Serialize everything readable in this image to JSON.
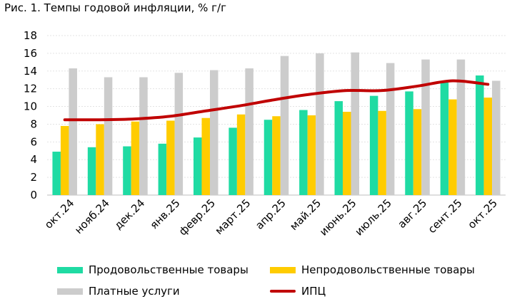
{
  "title": "Рис. 1. Темпы годовой инфляции, % г/г",
  "colors": {
    "food": "#1fdba3",
    "nonfood": "#ffcc00",
    "services": "#cccccc",
    "cpi": "#c00000"
  },
  "chart_data": {
    "type": "bar",
    "title": "Рис. 1. Темпы годовой инфляции, % г/г",
    "xlabel": "",
    "ylabel": "",
    "ylim": [
      0,
      18
    ],
    "yticks": [
      0,
      2,
      4,
      6,
      8,
      10,
      12,
      14,
      16,
      18
    ],
    "grid": true,
    "legend_position": "bottom",
    "categories": [
      "окт.24",
      "нояб.24",
      "дек.24",
      "янв.25",
      "февр.25",
      "март.25",
      "апр.25",
      "май.25",
      "июнь.25",
      "июль.25",
      "авг.25",
      "сент.25",
      "окт.25"
    ],
    "series": [
      {
        "name": "Продовольственные товары",
        "type": "bar",
        "color": "#1fdba3",
        "values": [
          4.9,
          5.4,
          5.5,
          5.8,
          6.5,
          7.6,
          8.5,
          9.6,
          10.6,
          11.2,
          11.7,
          12.7,
          13.5
        ]
      },
      {
        "name": "Непродовольственные товары",
        "type": "bar",
        "color": "#ffcc00",
        "values": [
          7.8,
          8.0,
          8.3,
          8.4,
          8.7,
          9.1,
          8.9,
          9.0,
          9.4,
          9.5,
          9.7,
          10.8,
          11.0
        ]
      },
      {
        "name": "Платные услуги",
        "type": "bar",
        "color": "#cccccc",
        "values": [
          14.3,
          13.3,
          13.3,
          13.8,
          14.1,
          14.3,
          15.7,
          16.0,
          16.1,
          14.9,
          15.3,
          15.3,
          12.9
        ]
      },
      {
        "name": "ИПЦ",
        "type": "line",
        "color": "#c00000",
        "values": [
          8.5,
          8.5,
          8.6,
          8.9,
          9.5,
          10.1,
          10.8,
          11.4,
          11.8,
          11.8,
          12.3,
          12.9,
          12.5
        ]
      }
    ]
  },
  "legend": {
    "food": "Продовольственные товары",
    "nonfood": "Непродовольственные товары",
    "services": "Платные услуги",
    "cpi": "ИПЦ"
  }
}
